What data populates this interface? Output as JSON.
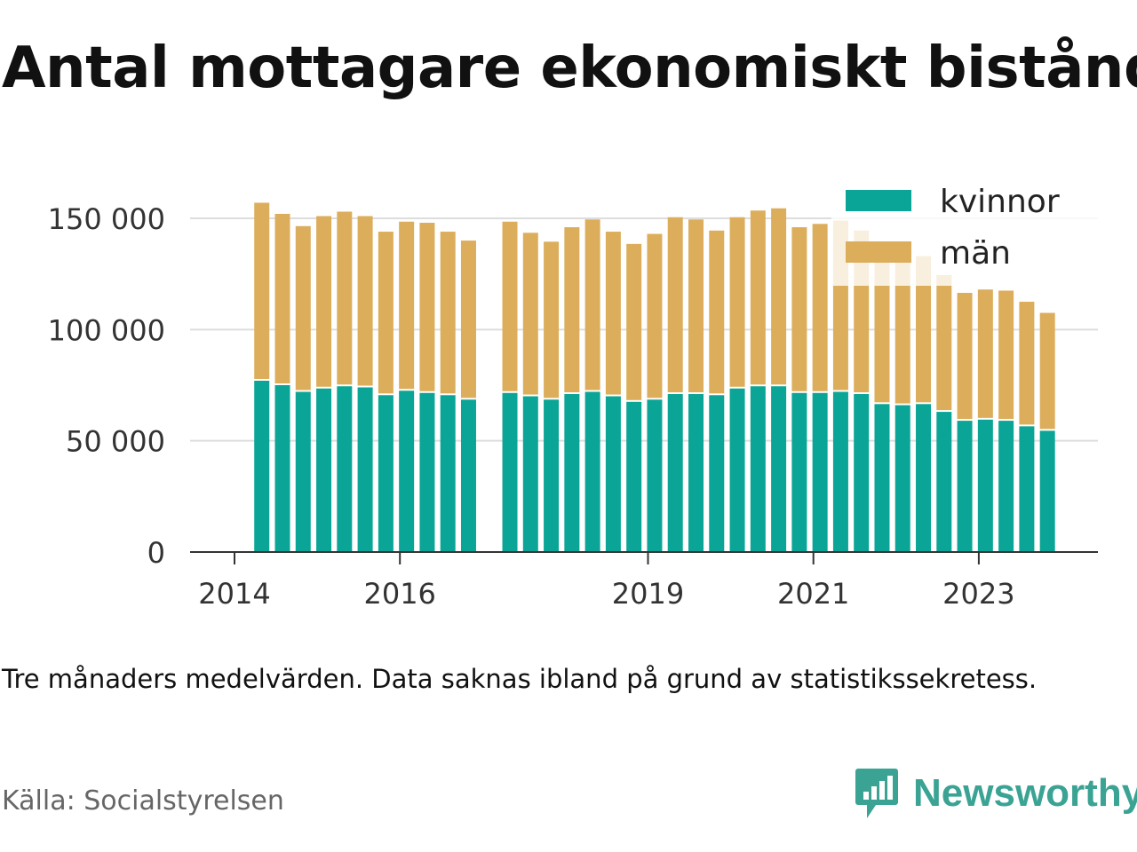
{
  "chart_data": {
    "type": "bar",
    "stacked": true,
    "title": "Antal mottagare ekonomiskt bistånd",
    "note": "Tre månaders medelvärden. Data saknas ibland på grund av statistikssekretess.",
    "source": "Källa: Socialstyrelsen",
    "brand": "Newsworthy",
    "x_ticks": [
      {
        "label": "2014",
        "t": 2014.0
      },
      {
        "label": "2016",
        "t": 2016.0
      },
      {
        "label": "2019",
        "t": 2019.0
      },
      {
        "label": "2021",
        "t": 2021.0
      },
      {
        "label": "2023",
        "t": 2023.0
      }
    ],
    "x_range": [
      2013.5,
      2024.5
    ],
    "y_ticks": [
      {
        "label": "0",
        "v": 0
      },
      {
        "label": "50 000",
        "v": 50000
      },
      {
        "label": "100 000",
        "v": 100000
      },
      {
        "label": "150 000",
        "v": 150000
      }
    ],
    "ylim": [
      0,
      160000
    ],
    "grid": true,
    "legend": {
      "position": "top-right"
    },
    "series": [
      {
        "name": "kvinnor",
        "color": "#0aa596"
      },
      {
        "name": "män",
        "color": "#dcae5c"
      }
    ],
    "x": [
      2014.33,
      2014.58,
      2014.83,
      2015.08,
      2015.33,
      2015.58,
      2015.83,
      2016.08,
      2016.33,
      2016.58,
      2016.83,
      2017.33,
      2017.58,
      2017.83,
      2018.08,
      2018.33,
      2018.58,
      2018.83,
      2019.08,
      2019.33,
      2019.58,
      2019.83,
      2020.08,
      2020.33,
      2020.58,
      2020.83,
      2021.08,
      2021.33,
      2021.58,
      2021.83,
      2022.08,
      2022.33,
      2022.58,
      2022.83,
      2023.08,
      2023.33,
      2023.58,
      2023.83
    ],
    "kvinnor": [
      77000,
      75000,
      72000,
      73500,
      74500,
      74000,
      70500,
      72500,
      71500,
      70500,
      68500,
      71500,
      70000,
      68500,
      71000,
      72000,
      70000,
      67500,
      68500,
      71000,
      71000,
      70500,
      73500,
      74500,
      74500,
      71500,
      71500,
      72000,
      71000,
      66500,
      66000,
      66500,
      63000,
      59000,
      59500,
      59000,
      56500,
      54500
    ],
    "man": [
      80000,
      77000,
      74500,
      77500,
      78500,
      77000,
      73500,
      76000,
      76500,
      73500,
      71500,
      77000,
      73500,
      71000,
      75000,
      77500,
      74000,
      71000,
      74500,
      79500,
      78500,
      74000,
      77000,
      79000,
      80000,
      74500,
      76000,
      77000,
      73500,
      70500,
      68000,
      66500,
      61500,
      57500,
      58500,
      58500,
      56000,
      53000
    ]
  }
}
